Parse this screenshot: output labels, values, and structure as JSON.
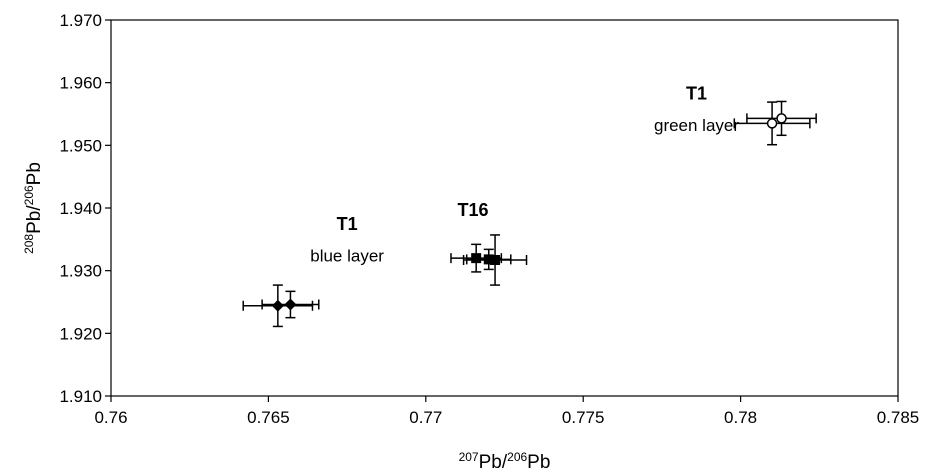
{
  "chart_data": {
    "type": "scatter",
    "xlabel": {
      "base1": "Pb",
      "sup1": "207",
      "sep": "/",
      "base2": "Pb",
      "sup2": "206"
    },
    "ylabel": {
      "base1": "Pb",
      "sup1": "208",
      "sep": "/",
      "base2": "Pb",
      "sup2": "206"
    },
    "xlim": [
      0.76,
      0.785
    ],
    "ylim": [
      1.91,
      1.97
    ],
    "xticks": [
      0.76,
      0.765,
      0.77,
      0.775,
      0.78,
      0.785
    ],
    "xtick_labels": [
      "0.76",
      "0.765",
      "0.77",
      "0.775",
      "0.78",
      "0.785"
    ],
    "yticks": [
      1.91,
      1.92,
      1.93,
      1.94,
      1.95,
      1.96,
      1.97
    ],
    "ytick_labels": [
      "1.910",
      "1.920",
      "1.930",
      "1.940",
      "1.950",
      "1.960",
      "1.970"
    ],
    "grid": false,
    "legend": "none",
    "series": [
      {
        "marker": "diamond-filled",
        "points": [
          {
            "x": 0.7653,
            "y": 1.9244,
            "xerr": 0.0011,
            "yerr": 0.0033
          },
          {
            "x": 0.7657,
            "y": 1.9246,
            "xerr": 0.0009,
            "yerr": 0.0021
          }
        ]
      },
      {
        "marker": "square-filled",
        "points": [
          {
            "x": 0.7716,
            "y": 1.932,
            "xerr": 0.0008,
            "yerr": 0.0022
          },
          {
            "x": 0.772,
            "y": 1.9318,
            "xerr": 0.0007,
            "yerr": 0.0016
          },
          {
            "x": 0.7722,
            "y": 1.9317,
            "xerr": 0.001,
            "yerr": 0.004
          }
        ]
      },
      {
        "marker": "circle-open",
        "points": [
          {
            "x": 0.781,
            "y": 1.9535,
            "xerr": 0.0012,
            "yerr": 0.0034
          },
          {
            "x": 0.7813,
            "y": 1.9543,
            "xerr": 0.0011,
            "yerr": 0.0027
          }
        ]
      }
    ],
    "annotations": [
      {
        "title": "T1",
        "subtitle": "blue layer",
        "x": 0.7675,
        "y_title": 1.9365,
        "y_sub": 1.9315
      },
      {
        "title": "T16",
        "subtitle": "",
        "x": 0.7715,
        "y_title": 1.9387,
        "y_sub": null
      },
      {
        "title": "T1",
        "subtitle": "green layer",
        "x": 0.7786,
        "y_title": 1.9573,
        "y_sub": 1.9523
      }
    ]
  }
}
